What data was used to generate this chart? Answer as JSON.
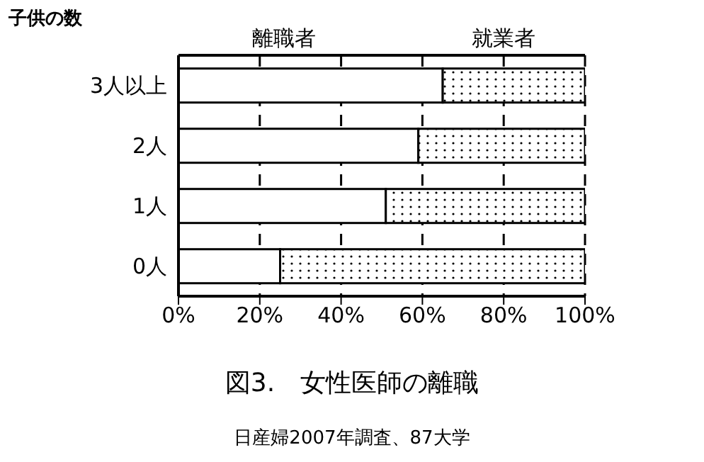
{
  "chart_data": {
    "type": "bar",
    "orientation": "horizontal",
    "stacked": true,
    "title": "図3.　女性医師の離職",
    "ylabel": "子供の数",
    "annotations": [
      "日産婦2007年調査、87大学"
    ],
    "categories": [
      "3人以上",
      "2人",
      "1人",
      "0人"
    ],
    "series": [
      {
        "name": "離職者",
        "color": "#ffffff",
        "values": [
          65,
          59,
          51,
          25
        ]
      },
      {
        "name": "就業者",
        "color": "#ffffff",
        "values": [
          35,
          41,
          49,
          75
        ]
      }
    ],
    "xlim": [
      0,
      100
    ],
    "xticks": [
      {
        "value": 0,
        "label": "0%"
      },
      {
        "value": 20,
        "label": "20%"
      },
      {
        "value": 40,
        "label": "40%"
      },
      {
        "value": 60,
        "label": "60%"
      },
      {
        "value": 80,
        "label": "80%"
      },
      {
        "value": 100,
        "label": "100%"
      }
    ],
    "grid": "x",
    "legend": "top"
  }
}
